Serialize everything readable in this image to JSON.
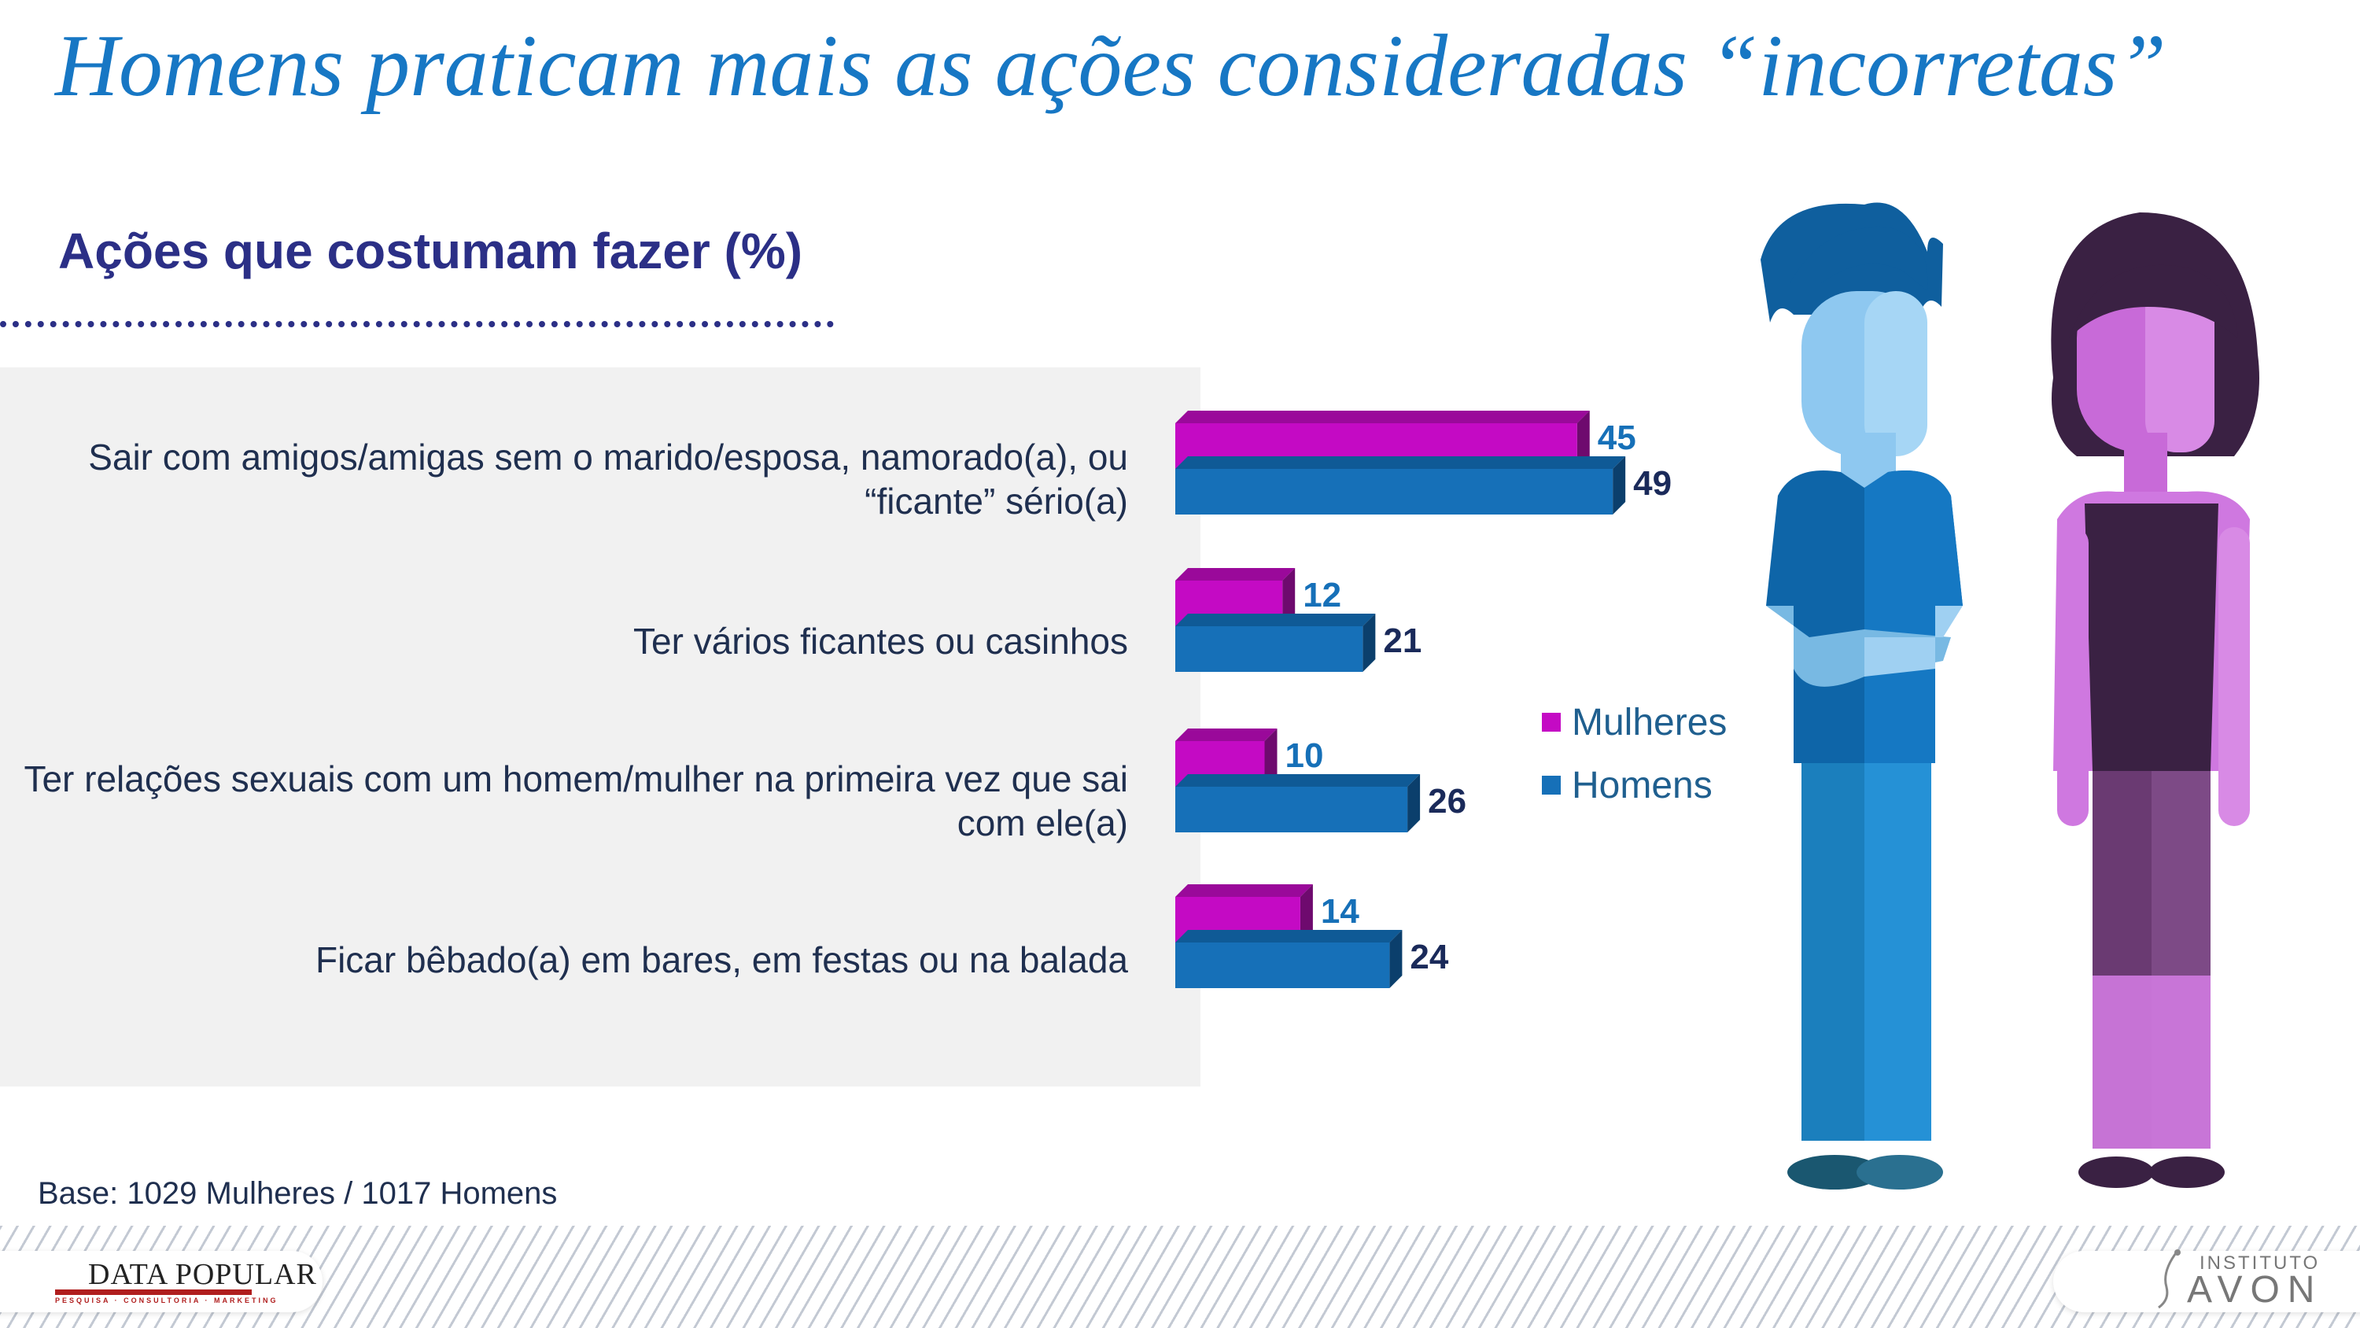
{
  "title": "Homens praticam mais as ações consideradas “incorretas”",
  "subtitle": "Ações que costumam fazer (%)",
  "categories": [
    "Sair com amigos/amigas sem o marido/esposa, namorado(a), ou “ficante” sério(a)",
    "Ter vários ficantes ou casinhos",
    "Ter relações sexuais com um homem/mulher na primeira vez que sai com ele(a)",
    "Ficar bêbado(a) em bares, em festas ou na balada"
  ],
  "legend": [
    "Mulheres",
    "Homens"
  ],
  "colors": {
    "mulheres": "#c40ac4",
    "homens": "#1670b8",
    "title": "#1777c4",
    "subtitle": "#2b2f86"
  },
  "chart_data": {
    "type": "bar",
    "orientation": "horizontal",
    "categories": [
      "Sair com amigos/amigas sem o marido/esposa, namorado(a), ou “ficante” sério(a)",
      "Ter vários ficantes ou casinhos",
      "Ter relações sexuais com um homem/mulher na primeira vez que sai com ele(a)",
      "Ficar bêbado(a) em bares, em festas ou na balada"
    ],
    "series": [
      {
        "name": "Mulheres",
        "values": [
          45,
          12,
          10,
          14
        ]
      },
      {
        "name": "Homens",
        "values": [
          49,
          21,
          26,
          24
        ]
      }
    ],
    "title": "Ações que costumam fazer (%)",
    "xlabel": "",
    "ylabel": "",
    "data_labels": true,
    "legend_position": "right",
    "grid": false
  },
  "base_note": "Base: 1029 Mulheres / 1017 Homens",
  "logos": {
    "data_popular": "DATA POPULAR",
    "data_popular_tagline": "PESQUISA · CONSULTORIA · MARKETING",
    "avon_institute": "INSTITUTO",
    "avon_name": "AVON"
  }
}
